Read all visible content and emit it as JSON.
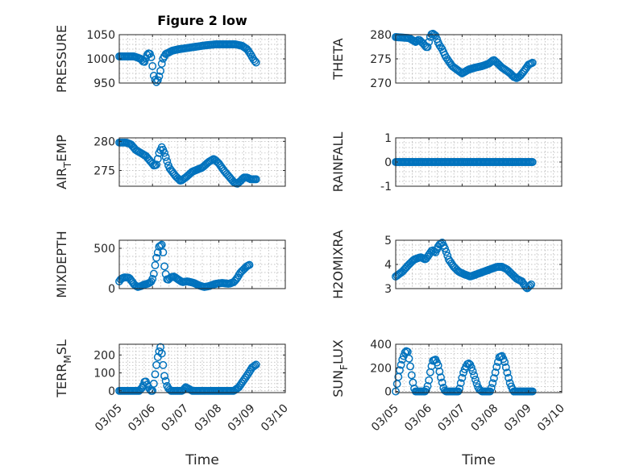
{
  "figure_title": "Figure 2 low",
  "chart_data": {
    "type": "scatter",
    "marker": "open-circle",
    "marker_color": "#0072BD",
    "grid": "dotted",
    "x_axis": {
      "label": "Time",
      "range_days": [
        5,
        10
      ],
      "ticks": [
        5,
        6,
        7,
        8,
        9,
        10
      ],
      "tick_labels": [
        "03/05",
        "03/06",
        "03/07",
        "03/08",
        "03/09",
        "03/10"
      ]
    },
    "panels": [
      {
        "id": "pressure",
        "ylabel": "PRESSURE",
        "title": "Figure 2 low",
        "ylim": [
          950,
          1050
        ],
        "yticks": [
          950,
          1000,
          1050
        ],
        "ytick_labels": [
          "950",
          "1000",
          "1050"
        ],
        "keys": [
          [
            5.0,
            1005
          ],
          [
            5.45,
            1005
          ],
          [
            5.65,
            1000
          ],
          [
            5.75,
            992
          ],
          [
            5.85,
            1010
          ],
          [
            5.9,
            1012
          ],
          [
            5.95,
            1008
          ],
          [
            6.0,
            985
          ],
          [
            6.05,
            960
          ],
          [
            6.12,
            952
          ],
          [
            6.18,
            958
          ],
          [
            6.25,
            978
          ],
          [
            6.3,
            998
          ],
          [
            6.4,
            1010
          ],
          [
            6.6,
            1017
          ],
          [
            6.8,
            1020
          ],
          [
            7.0,
            1022
          ],
          [
            7.3,
            1025
          ],
          [
            7.6,
            1028
          ],
          [
            7.9,
            1030
          ],
          [
            8.2,
            1030
          ],
          [
            8.5,
            1030
          ],
          [
            8.7,
            1027
          ],
          [
            8.85,
            1020
          ],
          [
            8.95,
            1010
          ],
          [
            9.05,
            998
          ],
          [
            9.15,
            990
          ]
        ]
      },
      {
        "id": "theta",
        "ylabel": "THETA",
        "ylim": [
          270,
          280
        ],
        "yticks": [
          270,
          275,
          280
        ],
        "ytick_labels": [
          "270",
          "275",
          "280"
        ],
        "keys": [
          [
            5.0,
            279.5
          ],
          [
            5.4,
            279.3
          ],
          [
            5.6,
            278.5
          ],
          [
            5.7,
            279.0
          ],
          [
            5.85,
            278.0
          ],
          [
            5.95,
            277.2
          ],
          [
            6.05,
            279.8
          ],
          [
            6.1,
            280.3
          ],
          [
            6.2,
            279.8
          ],
          [
            6.3,
            278.0
          ],
          [
            6.4,
            277.0
          ],
          [
            6.5,
            275.5
          ],
          [
            6.7,
            273.5
          ],
          [
            6.9,
            272.5
          ],
          [
            7.0,
            272.0
          ],
          [
            7.2,
            272.8
          ],
          [
            7.4,
            273.2
          ],
          [
            7.6,
            273.5
          ],
          [
            7.8,
            274.0
          ],
          [
            7.95,
            274.8
          ],
          [
            8.05,
            274.2
          ],
          [
            8.2,
            273.2
          ],
          [
            8.35,
            272.5
          ],
          [
            8.45,
            272.0
          ],
          [
            8.55,
            271.3
          ],
          [
            8.65,
            271.0
          ],
          [
            8.75,
            271.5
          ],
          [
            8.9,
            272.8
          ],
          [
            9.0,
            273.8
          ],
          [
            9.15,
            274.3
          ]
        ]
      },
      {
        "id": "air_temp",
        "ylabel": "AIR",
        "ylabel_sub": "T",
        "ylabel_rest": "EMP",
        "ylim": [
          272.3,
          280.6
        ],
        "yticks": [
          275,
          280
        ],
        "ytick_labels": [
          "275",
          "280"
        ],
        "keys": [
          [
            5.0,
            279.8
          ],
          [
            5.2,
            279.8
          ],
          [
            5.35,
            279.5
          ],
          [
            5.5,
            278.5
          ],
          [
            5.65,
            278.0
          ],
          [
            5.8,
            277.5
          ],
          [
            5.95,
            276.5
          ],
          [
            6.05,
            275.8
          ],
          [
            6.12,
            276.0
          ],
          [
            6.2,
            278.0
          ],
          [
            6.28,
            279.0
          ],
          [
            6.35,
            278.2
          ],
          [
            6.5,
            275.5
          ],
          [
            6.7,
            274.0
          ],
          [
            6.85,
            273.2
          ],
          [
            7.0,
            273.8
          ],
          [
            7.2,
            274.8
          ],
          [
            7.5,
            275.5
          ],
          [
            7.7,
            276.5
          ],
          [
            7.85,
            277.0
          ],
          [
            8.0,
            276.2
          ],
          [
            8.15,
            275.0
          ],
          [
            8.3,
            274.0
          ],
          [
            8.45,
            273.0
          ],
          [
            8.55,
            272.7
          ],
          [
            8.65,
            273.2
          ],
          [
            8.75,
            273.8
          ],
          [
            8.85,
            273.8
          ],
          [
            8.95,
            273.5
          ],
          [
            9.15,
            273.5
          ]
        ]
      },
      {
        "id": "rainfall",
        "ylabel": "RAINFALL",
        "ylim": [
          -1,
          1
        ],
        "yticks": [
          -1,
          0,
          1
        ],
        "ytick_labels": [
          "-1",
          "0",
          "1"
        ],
        "keys": [
          [
            5.0,
            0
          ],
          [
            9.15,
            0
          ]
        ]
      },
      {
        "id": "mixdepth",
        "ylabel": "MIXDEPTH",
        "ylim": [
          0,
          600
        ],
        "yticks": [
          0,
          500
        ],
        "ytick_labels": [
          "0",
          "500"
        ],
        "keys": [
          [
            5.0,
            90
          ],
          [
            5.05,
            120
          ],
          [
            5.15,
            140
          ],
          [
            5.3,
            135
          ],
          [
            5.45,
            50
          ],
          [
            5.55,
            20
          ],
          [
            5.65,
            30
          ],
          [
            5.75,
            50
          ],
          [
            5.85,
            60
          ],
          [
            5.95,
            80
          ],
          [
            6.0,
            120
          ],
          [
            6.05,
            200
          ],
          [
            6.1,
            350
          ],
          [
            6.15,
            430
          ],
          [
            6.2,
            520
          ],
          [
            6.3,
            550
          ],
          [
            6.35,
            300
          ],
          [
            6.4,
            180
          ],
          [
            6.45,
            100
          ],
          [
            6.55,
            140
          ],
          [
            6.65,
            150
          ],
          [
            6.75,
            120
          ],
          [
            6.9,
            80
          ],
          [
            7.05,
            90
          ],
          [
            7.25,
            70
          ],
          [
            7.4,
            40
          ],
          [
            7.55,
            20
          ],
          [
            7.7,
            30
          ],
          [
            7.9,
            60
          ],
          [
            8.1,
            70
          ],
          [
            8.3,
            60
          ],
          [
            8.45,
            80
          ],
          [
            8.55,
            130
          ],
          [
            8.65,
            200
          ],
          [
            8.75,
            240
          ],
          [
            8.85,
            280
          ],
          [
            8.95,
            300
          ]
        ]
      },
      {
        "id": "h2omixra",
        "ylabel": "H2OMIXRA",
        "ylim": [
          3,
          5
        ],
        "yticks": [
          3,
          4,
          5
        ],
        "ytick_labels": [
          "3",
          "4",
          "5"
        ],
        "keys": [
          [
            5.0,
            3.5
          ],
          [
            5.2,
            3.7
          ],
          [
            5.4,
            4.0
          ],
          [
            5.55,
            4.2
          ],
          [
            5.75,
            4.3
          ],
          [
            5.9,
            4.2
          ],
          [
            6.0,
            4.4
          ],
          [
            6.1,
            4.6
          ],
          [
            6.2,
            4.5
          ],
          [
            6.3,
            4.8
          ],
          [
            6.4,
            4.9
          ],
          [
            6.5,
            4.6
          ],
          [
            6.6,
            4.2
          ],
          [
            6.75,
            3.9
          ],
          [
            6.9,
            3.7
          ],
          [
            7.05,
            3.6
          ],
          [
            7.25,
            3.5
          ],
          [
            7.45,
            3.6
          ],
          [
            7.65,
            3.7
          ],
          [
            7.85,
            3.8
          ],
          [
            8.05,
            3.9
          ],
          [
            8.2,
            3.9
          ],
          [
            8.35,
            3.8
          ],
          [
            8.5,
            3.6
          ],
          [
            8.65,
            3.4
          ],
          [
            8.8,
            3.3
          ],
          [
            8.95,
            3.0
          ],
          [
            9.1,
            3.2
          ]
        ]
      },
      {
        "id": "terr_msl",
        "ylabel": "TERR",
        "ylabel_sub": "M",
        "ylabel_rest": "SL",
        "ylim": [
          -10,
          260
        ],
        "yticks": [
          0,
          100,
          200
        ],
        "ytick_labels": [
          "0",
          "100",
          "200"
        ],
        "keys": [
          [
            5.0,
            0
          ],
          [
            5.6,
            0
          ],
          [
            5.7,
            20
          ],
          [
            5.78,
            60
          ],
          [
            5.85,
            30
          ],
          [
            5.95,
            0
          ],
          [
            6.0,
            0
          ],
          [
            6.05,
            50
          ],
          [
            6.1,
            120
          ],
          [
            6.15,
            180
          ],
          [
            6.2,
            220
          ],
          [
            6.25,
            250
          ],
          [
            6.3,
            180
          ],
          [
            6.35,
            90
          ],
          [
            6.45,
            20
          ],
          [
            6.55,
            0
          ],
          [
            6.9,
            0
          ],
          [
            7.0,
            20
          ],
          [
            7.1,
            10
          ],
          [
            7.2,
            0
          ],
          [
            8.0,
            0
          ],
          [
            8.3,
            0
          ],
          [
            8.45,
            0
          ],
          [
            8.6,
            20
          ],
          [
            8.75,
            60
          ],
          [
            8.9,
            100
          ],
          [
            9.0,
            130
          ],
          [
            9.15,
            150
          ]
        ]
      },
      {
        "id": "sun_flux",
        "ylabel": "SUN",
        "ylabel_sub": "F",
        "ylabel_rest": "LUX",
        "ylim": [
          -10,
          400
        ],
        "yticks": [
          0,
          200,
          400
        ],
        "ytick_labels": [
          "0",
          "200",
          "400"
        ],
        "keys": [
          [
            5.0,
            0
          ],
          [
            5.05,
            80
          ],
          [
            5.12,
            180
          ],
          [
            5.2,
            270
          ],
          [
            5.28,
            330
          ],
          [
            5.35,
            350
          ],
          [
            5.42,
            250
          ],
          [
            5.5,
            100
          ],
          [
            5.58,
            0
          ],
          [
            5.9,
            0
          ],
          [
            5.98,
            60
          ],
          [
            6.05,
            180
          ],
          [
            6.12,
            260
          ],
          [
            6.2,
            270
          ],
          [
            6.28,
            220
          ],
          [
            6.35,
            130
          ],
          [
            6.45,
            20
          ],
          [
            6.5,
            0
          ],
          [
            6.9,
            0
          ],
          [
            6.95,
            60
          ],
          [
            7.05,
            170
          ],
          [
            7.15,
            230
          ],
          [
            7.22,
            240
          ],
          [
            7.3,
            190
          ],
          [
            7.4,
            100
          ],
          [
            7.5,
            20
          ],
          [
            7.6,
            0
          ],
          [
            7.85,
            0
          ],
          [
            7.95,
            100
          ],
          [
            8.05,
            220
          ],
          [
            8.12,
            290
          ],
          [
            8.2,
            300
          ],
          [
            8.28,
            250
          ],
          [
            8.35,
            170
          ],
          [
            8.45,
            60
          ],
          [
            8.55,
            0
          ],
          [
            9.15,
            0
          ]
        ]
      }
    ]
  }
}
